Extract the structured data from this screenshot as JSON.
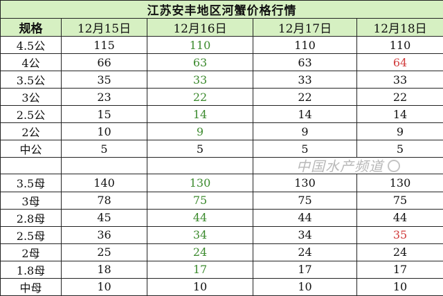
{
  "title": "江苏安丰地区河蟹价格行情",
  "headers": [
    "规格",
    "12月15日",
    "12月16日",
    "12月17日",
    "12月18日"
  ],
  "colors": {
    "header_bg": "#d6f0c2",
    "increase": "#d03a3a",
    "decrease": "#3c8a2e"
  },
  "male_rows": [
    {
      "spec": "4.5公",
      "v": [
        "115",
        "110",
        "110",
        "110"
      ],
      "c": [
        "",
        "g",
        "",
        ""
      ]
    },
    {
      "spec": "4公",
      "v": [
        "66",
        "63",
        "63",
        "64"
      ],
      "c": [
        "",
        "g",
        "",
        "r"
      ]
    },
    {
      "spec": "3.5公",
      "v": [
        "35",
        "33",
        "33",
        "33"
      ],
      "c": [
        "",
        "g",
        "",
        ""
      ]
    },
    {
      "spec": "3公",
      "v": [
        "23",
        "22",
        "22",
        "22"
      ],
      "c": [
        "",
        "g",
        "",
        ""
      ]
    },
    {
      "spec": "2.5公",
      "v": [
        "15",
        "14",
        "14",
        "14"
      ],
      "c": [
        "",
        "g",
        "",
        ""
      ]
    },
    {
      "spec": "2公",
      "v": [
        "10",
        "9",
        "9",
        "9"
      ],
      "c": [
        "",
        "g",
        "",
        ""
      ]
    },
    {
      "spec": "中公",
      "v": [
        "5",
        "5",
        "5",
        "5"
      ],
      "c": [
        "",
        "",
        "",
        ""
      ]
    }
  ],
  "female_rows": [
    {
      "spec": "3.5母",
      "v": [
        "140",
        "130",
        "130",
        "130"
      ],
      "c": [
        "",
        "g",
        "",
        ""
      ]
    },
    {
      "spec": "3母",
      "v": [
        "78",
        "75",
        "75",
        "75"
      ],
      "c": [
        "",
        "g",
        "",
        ""
      ]
    },
    {
      "spec": "2.8母",
      "v": [
        "45",
        "44",
        "44",
        "44"
      ],
      "c": [
        "",
        "g",
        "",
        ""
      ]
    },
    {
      "spec": "2.5母",
      "v": [
        "36",
        "34",
        "34",
        "35"
      ],
      "c": [
        "",
        "g",
        "",
        "r"
      ]
    },
    {
      "spec": "2母",
      "v": [
        "25",
        "24",
        "24",
        "24"
      ],
      "c": [
        "",
        "g",
        "",
        ""
      ]
    },
    {
      "spec": "1.8母",
      "v": [
        "18",
        "17",
        "17",
        "17"
      ],
      "c": [
        "",
        "g",
        "",
        ""
      ]
    },
    {
      "spec": "中母",
      "v": [
        "10",
        "10",
        "10",
        "10"
      ],
      "c": [
        "",
        "",
        "",
        ""
      ]
    }
  ],
  "watermark": "中国水产频道"
}
